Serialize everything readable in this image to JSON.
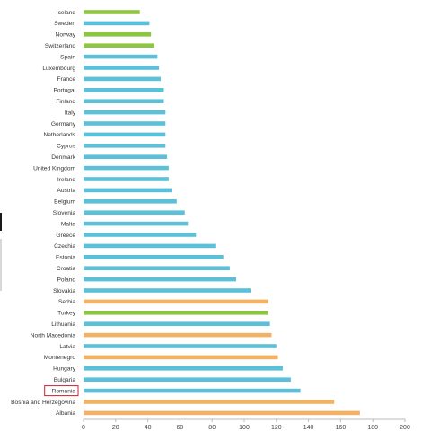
{
  "chart_data": {
    "type": "bar",
    "orientation": "horizontal",
    "title": "",
    "xlabel": "",
    "ylabel": "",
    "xlim": [
      0,
      200
    ],
    "xticks": [
      "0",
      "20",
      "40",
      "60",
      "80",
      "100",
      "120",
      "140",
      "160",
      "180",
      "200"
    ],
    "grid": false,
    "highlight": "Romania",
    "colors": {
      "green": "#8dc63f",
      "blue": "#5bc0d8",
      "orange": "#f2b266",
      "highlight_box": "#d0202e",
      "axis": "#bbbbbb"
    },
    "categories": [
      "Iceland",
      "Sweden",
      "Norway",
      "Switzerland",
      "Spain",
      "Luxembourg",
      "France",
      "Portugal",
      "Finland",
      "Italy",
      "Germany",
      "Netherlands",
      "Cyprus",
      "Denmark",
      "United Kingdom",
      "Ireland",
      "Austria",
      "Belgium",
      "Slovenia",
      "Malta",
      "Greece",
      "Czechia",
      "Estonia",
      "Croatia",
      "Poland",
      "Slovakia",
      "Serbia",
      "Turkey",
      "Lithuania",
      "North Macedonia",
      "Latvia",
      "Montenegro",
      "Hungary",
      "Bulgaria",
      "Romania",
      "Bosnia and Herzegovina",
      "Albania"
    ],
    "values": [
      35,
      41,
      42,
      44,
      46,
      47,
      48,
      50,
      50,
      51,
      51,
      51,
      51,
      52,
      53,
      53,
      55,
      58,
      63,
      65,
      70,
      82,
      87,
      91,
      95,
      104,
      115,
      115,
      116,
      117,
      120,
      121,
      124,
      129,
      135,
      156,
      172
    ],
    "bar_colors": [
      "green",
      "blue",
      "green",
      "green",
      "blue",
      "blue",
      "blue",
      "blue",
      "blue",
      "blue",
      "blue",
      "blue",
      "blue",
      "blue",
      "blue",
      "blue",
      "blue",
      "blue",
      "blue",
      "blue",
      "blue",
      "blue",
      "blue",
      "blue",
      "blue",
      "blue",
      "orange",
      "green",
      "blue",
      "orange",
      "blue",
      "orange",
      "blue",
      "blue",
      "blue",
      "orange",
      "orange"
    ]
  }
}
